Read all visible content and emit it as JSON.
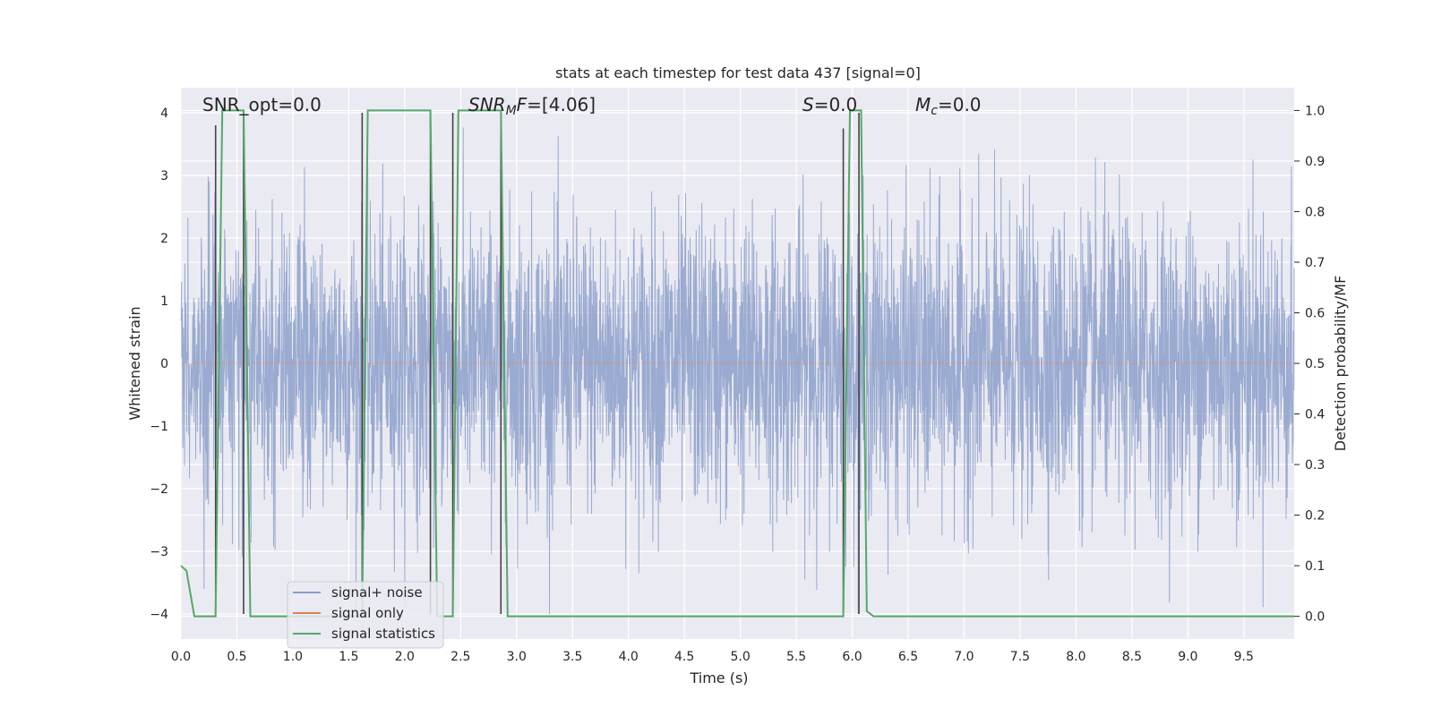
{
  "chart_data": {
    "type": "line",
    "title": "stats at each timestep for test data 437 [signal=0]",
    "xlabel": "Time (s)",
    "ylabel_left": "Whitened strain",
    "ylabel_right": "Detection probability/MF",
    "xlim": [
      0.0,
      9.95
    ],
    "ylim_left": [
      -4.4,
      4.4
    ],
    "ylim_right": [
      -0.045,
      1.045
    ],
    "xticks": [
      0.0,
      0.5,
      1.0,
      1.5,
      2.0,
      2.5,
      3.0,
      3.5,
      4.0,
      4.5,
      5.0,
      5.5,
      6.0,
      6.5,
      7.0,
      7.5,
      8.0,
      8.5,
      9.0,
      9.5
    ],
    "xtick_labels": [
      "0.0",
      "0.5",
      "1.0",
      "1.5",
      "2.0",
      "2.5",
      "3.0",
      "3.5",
      "4.0",
      "4.5",
      "5.0",
      "5.5",
      "6.0",
      "6.5",
      "7.0",
      "7.5",
      "8.0",
      "8.5",
      "9.0",
      "9.5"
    ],
    "yticks_left": [
      -4,
      -3,
      -2,
      -1,
      0,
      1,
      2,
      3,
      4
    ],
    "yticks_left_labels": [
      "−4",
      "−3",
      "−2",
      "−1",
      "0",
      "1",
      "2",
      "3",
      "4"
    ],
    "yticks_right": [
      0.0,
      0.1,
      0.2,
      0.3,
      0.4,
      0.5,
      0.6,
      0.7,
      0.8,
      0.9,
      1.0
    ],
    "yticks_right_labels": [
      "0.0",
      "0.1",
      "0.2",
      "0.3",
      "0.4",
      "0.5",
      "0.6",
      "0.7",
      "0.8",
      "0.9",
      "1.0"
    ],
    "grid": true,
    "annotations": [
      {
        "text": "SNR_opt=0.0",
        "x": 0.2,
        "y": 4.1
      },
      {
        "text": "SNR_MF=[4.06]",
        "x": 2.6,
        "y": 4.1
      },
      {
        "text": "S=0.0",
        "x": 5.6,
        "y": 4.1
      },
      {
        "text": "M_c=0.0",
        "x": 6.6,
        "y": 4.1
      }
    ],
    "legend_placement": "lower-left",
    "series": [
      {
        "name": "signal+ noise",
        "color": "#8c9fca",
        "axis": "left",
        "description": "whitened noise strain, roughly Gaussian, spanning about -4 to 4",
        "range": [
          -4.0,
          4.0
        ]
      },
      {
        "name": "signal only",
        "color": "#dd8452",
        "axis": "left",
        "x": [
          0.0,
          9.95
        ],
        "y": [
          0.0,
          0.0
        ]
      },
      {
        "name": "signal statistics",
        "color": "#55a868",
        "axis": "right",
        "x": [
          0.0,
          0.05,
          0.12,
          0.31,
          0.37,
          0.56,
          0.62,
          1.62,
          1.67,
          2.23,
          2.29,
          2.43,
          2.48,
          2.86,
          2.92,
          5.92,
          5.98,
          6.08,
          6.13,
          6.19,
          9.95
        ],
        "y": [
          0.1,
          0.09,
          0.0,
          0.0,
          1.0,
          1.0,
          0.0,
          0.0,
          1.0,
          1.0,
          0.0,
          0.0,
          1.0,
          1.0,
          0.0,
          0.0,
          1.0,
          1.0,
          0.01,
          0.0,
          0.0
        ]
      },
      {
        "name": "mf markers",
        "color": "#444444",
        "axis": "left",
        "x": [
          0.31,
          0.56,
          1.62,
          2.23,
          2.43,
          2.86,
          5.92,
          6.06
        ],
        "y_top": [
          3.8,
          4.0,
          4.0,
          4.0,
          4.0,
          4.0,
          3.75,
          4.0
        ]
      }
    ]
  },
  "legend": {
    "items": [
      {
        "label": "signal+ noise",
        "color": "#8c9fca"
      },
      {
        "label": "signal only",
        "color": "#dd8452"
      },
      {
        "label": "signal statistics",
        "color": "#55a868"
      }
    ]
  }
}
